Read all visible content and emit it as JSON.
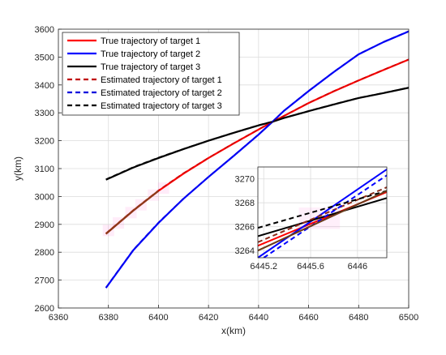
{
  "chart_data": [
    {
      "type": "line",
      "xlabel": "x(km)",
      "ylabel": "y(km)",
      "xlim": [
        6360,
        6500
      ],
      "ylim": [
        2600,
        3600
      ],
      "xticks": [
        "6360",
        "6380",
        "6400",
        "6420",
        "6440",
        "6460",
        "6480",
        "6500"
      ],
      "yticks": [
        "2600",
        "2700",
        "2800",
        "2900",
        "3000",
        "3100",
        "3200",
        "3300",
        "3400",
        "3500",
        "3600"
      ],
      "grid": true,
      "legend_position": "top-left",
      "series": [
        {
          "name": "True trajectory of target 1",
          "color": "#ff0000",
          "dash": false,
          "x": [
            6379,
            6390,
            6400,
            6410,
            6420,
            6430,
            6440,
            6445.6,
            6450,
            6460,
            6470,
            6480,
            6490,
            6500
          ],
          "y": [
            2866,
            2950,
            3020,
            3082,
            3138,
            3190,
            3240,
            3268,
            3288,
            3335,
            3377,
            3416,
            3454,
            3491
          ]
        },
        {
          "name": "True trajectory of target 2",
          "color": "#0000ff",
          "dash": false,
          "x": [
            6379,
            6390,
            6400,
            6410,
            6420,
            6430,
            6440,
            6445.6,
            6450,
            6460,
            6470,
            6480,
            6490,
            6500
          ],
          "y": [
            2672,
            2808,
            2905,
            2992,
            3070,
            3145,
            3222,
            3268,
            3306,
            3378,
            3446,
            3510,
            3554,
            3592
          ]
        },
        {
          "name": "True trajectory of target 3",
          "color": "#000000",
          "dash": false,
          "x": [
            6379,
            6390,
            6400,
            6410,
            6420,
            6430,
            6440,
            6445.6,
            6450,
            6460,
            6470,
            6480,
            6490,
            6500
          ],
          "y": [
            3060,
            3104,
            3138,
            3170,
            3200,
            3228,
            3255,
            3268,
            3281,
            3306,
            3330,
            3353,
            3371,
            3390
          ]
        },
        {
          "name": "Estimated trajectory of target 1",
          "color": "#c00000",
          "dash": true,
          "x": [
            6379,
            6390,
            6400,
            6410,
            6420,
            6430,
            6440,
            6445.6,
            6450,
            6460,
            6470,
            6480,
            6490,
            6500
          ],
          "y": [
            2868,
            2952,
            3022,
            3084,
            3139,
            3191,
            3241,
            3269,
            3289,
            3336,
            3378,
            3417,
            3455,
            3492
          ]
        },
        {
          "name": "Estimated trajectory of target 2",
          "color": "#0000dd",
          "dash": true,
          "x": [
            6379,
            6390,
            6400,
            6410,
            6420,
            6430,
            6440,
            6445.6,
            6450,
            6460,
            6470,
            6480,
            6490,
            6500
          ],
          "y": [
            2674,
            2810,
            2907,
            2993,
            3071,
            3146,
            3223,
            3269,
            3307,
            3379,
            3447,
            3511,
            3555,
            3593
          ]
        },
        {
          "name": "Estimated trajectory of target 3",
          "color": "#000000",
          "dash": true,
          "x": [
            6379,
            6390,
            6400,
            6410,
            6420,
            6430,
            6440,
            6445.6,
            6450,
            6460,
            6470,
            6480,
            6490,
            6500
          ],
          "y": [
            3062,
            3106,
            3140,
            3171,
            3201,
            3229,
            3256,
            3269,
            3282,
            3307,
            3331,
            3354,
            3372,
            3391
          ]
        }
      ]
    },
    {
      "type": "line",
      "role": "inset",
      "xlim": [
        6445.15,
        6446.25
      ],
      "ylim": [
        3263.4,
        3271
      ],
      "xticks": [
        "6445.2",
        "6445.6",
        "6446"
      ],
      "yticks": [
        "3264",
        "3266",
        "3268",
        "3270"
      ],
      "grid": true,
      "series": [
        {
          "color": "#ff0000",
          "dash": false,
          "x": [
            6445.15,
            6446.25
          ],
          "y": [
            3264.4,
            3268.9
          ]
        },
        {
          "color": "#0000ff",
          "dash": false,
          "x": [
            6445.15,
            6446.25
          ],
          "y": [
            3263.4,
            3270.8
          ]
        },
        {
          "color": "#000000",
          "dash": false,
          "x": [
            6445.15,
            6446.25
          ],
          "y": [
            3265.2,
            3268.4
          ]
        },
        {
          "color": "#8b2a1a",
          "dash": true,
          "x": [
            6445.15,
            6446.25
          ],
          "y": [
            3264.7,
            3269.3
          ]
        },
        {
          "color": "#0000ff",
          "dash": true,
          "x": [
            6445.2,
            6446.25
          ],
          "y": [
            3263.4,
            3270.3
          ]
        },
        {
          "color": "#000000",
          "dash": true,
          "x": [
            6445.15,
            6446.25
          ],
          "y": [
            3265.9,
            3269.0
          ]
        },
        {
          "color": "#6b3a1a",
          "dash": false,
          "x": [
            6445.15,
            6446.25
          ],
          "y": [
            3264.0,
            3269.0
          ]
        }
      ]
    }
  ]
}
